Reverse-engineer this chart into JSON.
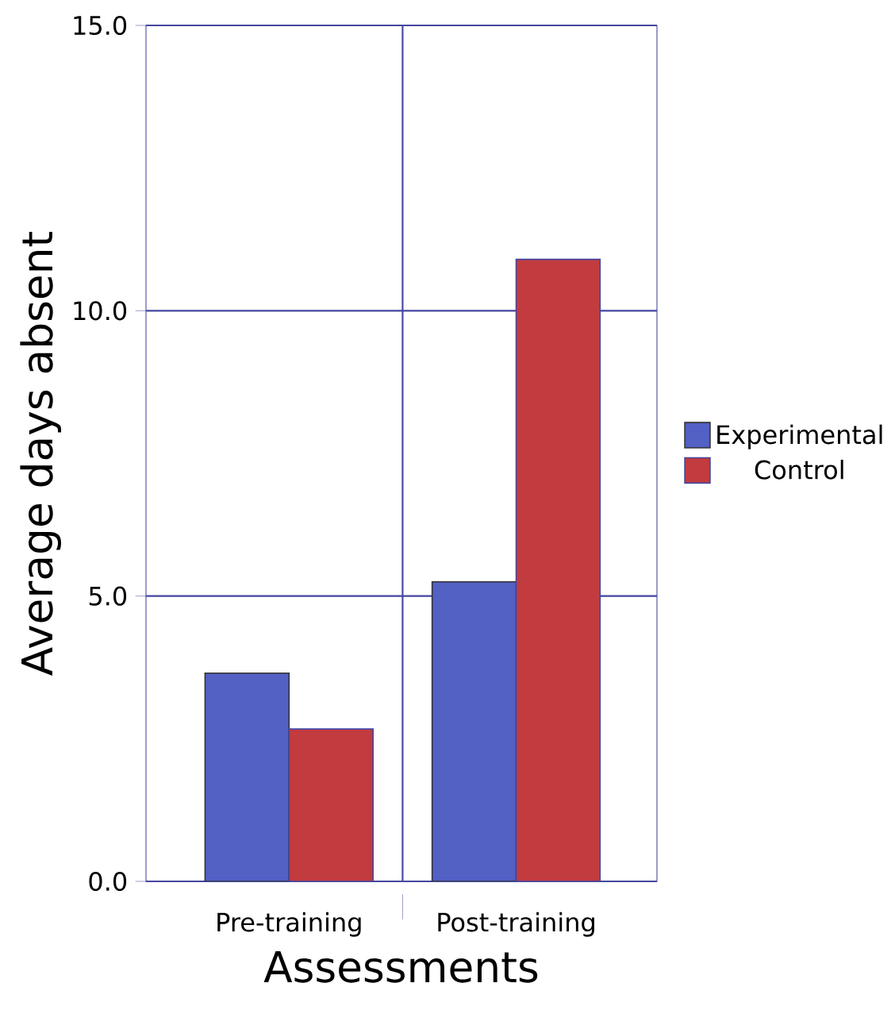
{
  "chart_data": {
    "type": "bar",
    "xlabel": "Assessments",
    "ylabel": "Average days absent",
    "categories": [
      "Pre-training",
      "Post-training"
    ],
    "series": [
      {
        "name": "Experimental",
        "color": "#5360c4",
        "values": [
          3.65,
          5.25
        ]
      },
      {
        "name": "Control",
        "color": "#c23b3e",
        "values": [
          2.67,
          10.9
        ]
      }
    ],
    "ylim": [
      0,
      15
    ],
    "yticks": [
      {
        "value": 0,
        "label": "0.0"
      },
      {
        "value": 5,
        "label": "5.0"
      },
      {
        "value": 10,
        "label": "10.0"
      },
      {
        "value": 15,
        "label": "15.0"
      }
    ],
    "grid": true,
    "legend": "right"
  }
}
